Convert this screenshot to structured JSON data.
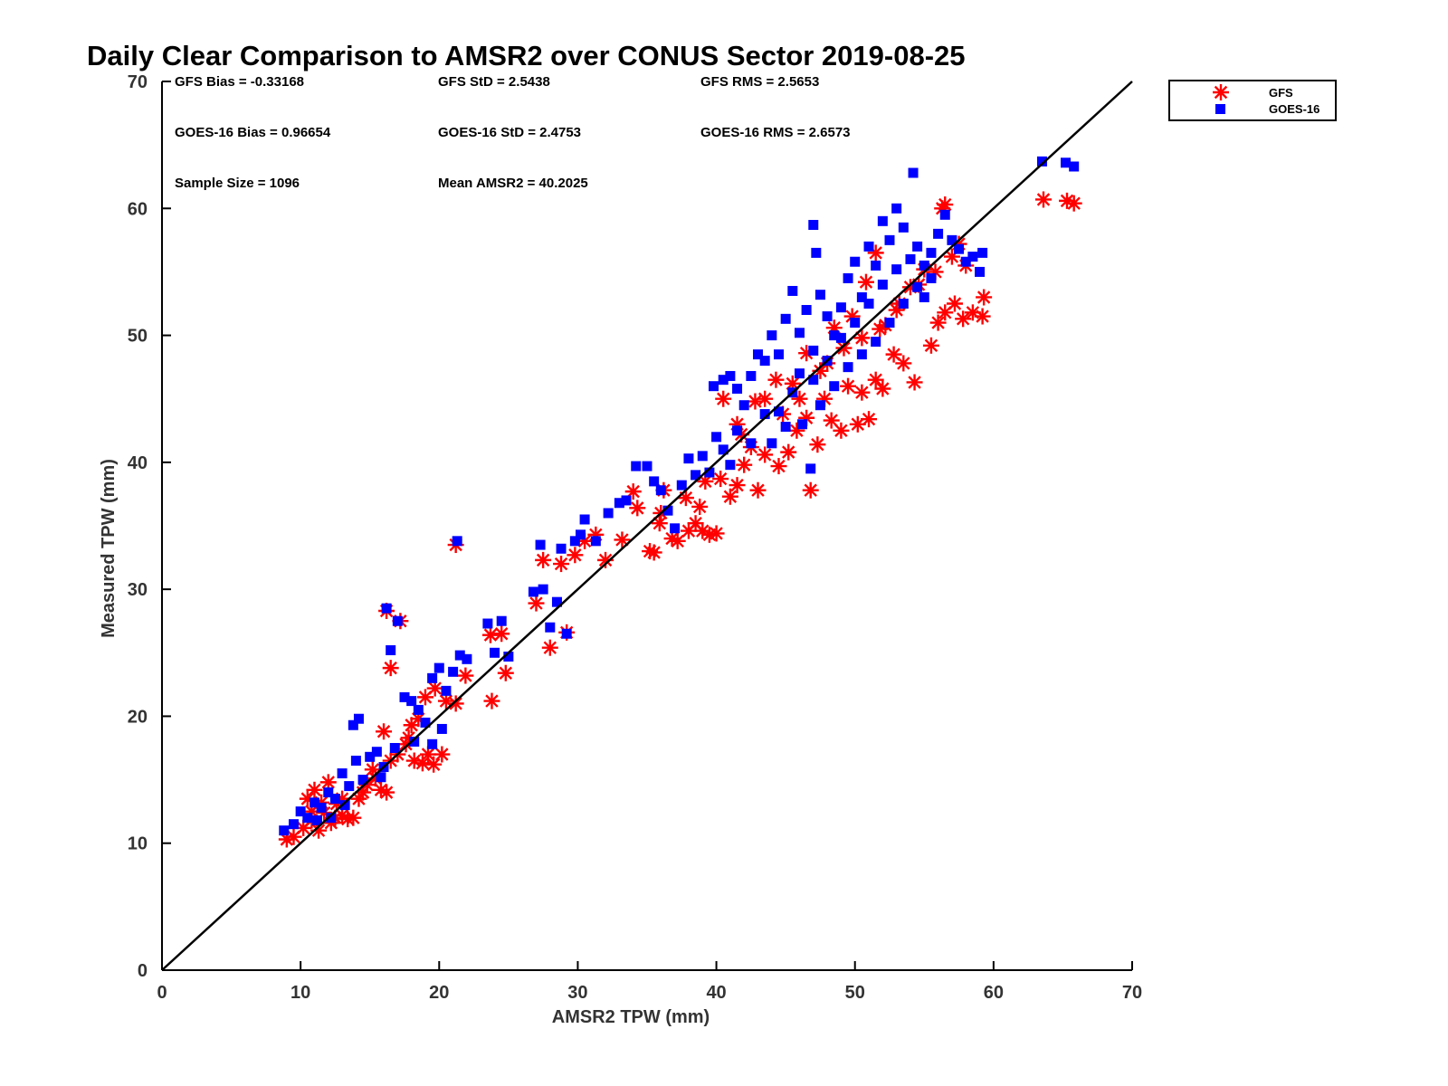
{
  "chart_data": {
    "type": "scatter",
    "title": "Daily Clear Comparison to AMSR2 over CONUS Sector 2019-08-25",
    "xlabel": "AMSR2 TPW (mm)",
    "ylabel": "Measured TPW (mm)",
    "xlim": [
      0,
      70
    ],
    "ylim": [
      0,
      70
    ],
    "xticks": [
      "0",
      "10",
      "20",
      "30",
      "40",
      "50",
      "60",
      "70"
    ],
    "yticks": [
      "0",
      "10",
      "20",
      "30",
      "40",
      "50",
      "60",
      "70"
    ],
    "grid": false,
    "legend_position": "top-right, outside plot",
    "reference_line": "y = x",
    "stats": {
      "gfs_bias": "GFS Bias = -0.33168",
      "gfs_std": "GFS StD = 2.5438",
      "gfs_rms": "GFS RMS = 2.5653",
      "goes_bias": "GOES-16 Bias = 0.96654",
      "goes_std": "GOES-16 StD = 2.4753",
      "goes_rms": "GOES-16 RMS = 2.6573",
      "sample_size": "Sample Size = 1096",
      "mean_amsr2": "Mean AMSR2 = 40.2025"
    },
    "series": [
      {
        "name": "GFS",
        "marker": "asterisk",
        "color": "#ff0000",
        "points": [
          [
            9.0,
            10.3
          ],
          [
            9.5,
            10.5
          ],
          [
            10.2,
            11.2
          ],
          [
            10.8,
            11.8
          ],
          [
            11.3,
            11.0
          ],
          [
            11.7,
            12.4
          ],
          [
            12.2,
            11.6
          ],
          [
            12.6,
            13.1
          ],
          [
            13.0,
            12.2
          ],
          [
            13.4,
            11.9
          ],
          [
            13.8,
            12.0
          ],
          [
            14.2,
            13.5
          ],
          [
            10.5,
            13.5
          ],
          [
            11.0,
            14.2
          ],
          [
            12.0,
            14.8
          ],
          [
            14.8,
            14.6
          ],
          [
            15.4,
            15.1
          ],
          [
            15.8,
            14.2
          ],
          [
            16.2,
            14.0
          ],
          [
            16.5,
            16.5
          ],
          [
            17.0,
            17.0
          ],
          [
            17.6,
            17.8
          ],
          [
            18.2,
            16.5
          ],
          [
            18.8,
            16.3
          ],
          [
            19.2,
            17.0
          ],
          [
            19.6,
            16.2
          ],
          [
            20.2,
            17.0
          ],
          [
            16.0,
            18.8
          ],
          [
            18.5,
            19.8
          ],
          [
            19.0,
            21.5
          ],
          [
            19.7,
            22.2
          ],
          [
            20.5,
            21.2
          ],
          [
            21.2,
            21.0
          ],
          [
            21.9,
            23.2
          ],
          [
            16.2,
            28.3
          ],
          [
            17.2,
            27.5
          ],
          [
            16.5,
            23.8
          ],
          [
            21.2,
            33.5
          ],
          [
            23.7,
            26.4
          ],
          [
            24.5,
            26.5
          ],
          [
            23.8,
            21.2
          ],
          [
            24.8,
            23.4
          ],
          [
            27.0,
            28.9
          ],
          [
            27.5,
            32.3
          ],
          [
            28.0,
            25.4
          ],
          [
            28.8,
            32.0
          ],
          [
            29.2,
            26.6
          ],
          [
            29.8,
            32.7
          ],
          [
            30.5,
            33.8
          ],
          [
            31.3,
            34.3
          ],
          [
            32.0,
            32.3
          ],
          [
            33.2,
            33.9
          ],
          [
            34.3,
            36.4
          ],
          [
            34.0,
            37.7
          ],
          [
            35.5,
            32.9
          ],
          [
            35.2,
            33.0
          ],
          [
            35.9,
            35.2
          ],
          [
            36.2,
            37.8
          ],
          [
            36.8,
            34.0
          ],
          [
            37.2,
            33.8
          ],
          [
            38.0,
            34.6
          ],
          [
            38.5,
            35.2
          ],
          [
            39.0,
            34.6
          ],
          [
            39.5,
            34.3
          ],
          [
            40.0,
            34.4
          ],
          [
            40.3,
            38.7
          ],
          [
            41.0,
            37.3
          ],
          [
            41.5,
            38.2
          ],
          [
            42.0,
            39.8
          ],
          [
            43.0,
            37.8
          ],
          [
            40.5,
            45.0
          ],
          [
            41.5,
            43.0
          ],
          [
            42.5,
            41.2
          ],
          [
            43.5,
            40.6
          ],
          [
            44.5,
            39.7
          ],
          [
            45.2,
            40.8
          ],
          [
            45.8,
            42.5
          ],
          [
            46.5,
            43.5
          ],
          [
            46.8,
            37.8
          ],
          [
            47.3,
            41.4
          ],
          [
            47.8,
            45.0
          ],
          [
            48.3,
            43.3
          ],
          [
            49.0,
            42.5
          ],
          [
            49.5,
            46.0
          ],
          [
            50.2,
            43.0
          ],
          [
            50.5,
            45.5
          ],
          [
            51.0,
            43.4
          ],
          [
            51.5,
            46.5
          ],
          [
            52.0,
            45.8
          ],
          [
            52.8,
            48.5
          ],
          [
            53.5,
            47.8
          ],
          [
            54.3,
            46.3
          ],
          [
            55.5,
            49.2
          ],
          [
            56.0,
            51.0
          ],
          [
            56.5,
            51.8
          ],
          [
            57.2,
            52.5
          ],
          [
            57.8,
            51.3
          ],
          [
            58.5,
            51.8
          ],
          [
            59.2,
            51.5
          ],
          [
            59.3,
            53.0
          ],
          [
            58.0,
            55.5
          ],
          [
            57.5,
            57.2
          ],
          [
            56.5,
            60.3
          ],
          [
            56.3,
            60.0
          ],
          [
            55.0,
            55.2
          ],
          [
            54.0,
            53.8
          ],
          [
            53.0,
            52.0
          ],
          [
            52.2,
            50.8
          ],
          [
            51.5,
            56.5
          ],
          [
            50.8,
            54.2
          ],
          [
            49.8,
            51.5
          ],
          [
            48.5,
            50.6
          ],
          [
            47.5,
            47.2
          ],
          [
            46.5,
            48.6
          ],
          [
            45.5,
            46.2
          ],
          [
            44.3,
            46.5
          ],
          [
            43.5,
            45.0
          ],
          [
            42.8,
            44.8
          ],
          [
            63.6,
            60.7
          ],
          [
            65.3,
            60.6
          ],
          [
            65.8,
            60.4
          ],
          [
            41.8,
            42.2
          ],
          [
            44.8,
            43.8
          ],
          [
            46.0,
            45.0
          ],
          [
            48.0,
            47.8
          ],
          [
            49.2,
            49.0
          ],
          [
            50.5,
            49.8
          ],
          [
            51.8,
            50.5
          ],
          [
            53.2,
            52.5
          ],
          [
            54.6,
            54.0
          ],
          [
            55.8,
            55.0
          ],
          [
            57.0,
            56.2
          ],
          [
            36.0,
            36.0
          ],
          [
            37.8,
            37.2
          ],
          [
            39.2,
            38.5
          ],
          [
            38.8,
            36.5
          ],
          [
            13.0,
            13.5
          ],
          [
            14.5,
            14.0
          ],
          [
            15.2,
            15.8
          ],
          [
            12.5,
            12.0
          ],
          [
            11.5,
            13.2
          ],
          [
            10.8,
            12.5
          ],
          [
            17.8,
            18.3
          ],
          [
            18.0,
            19.3
          ]
        ]
      },
      {
        "name": "GOES-16",
        "marker": "square",
        "color": "#0000ff",
        "points": [
          [
            8.8,
            11.0
          ],
          [
            9.5,
            11.5
          ],
          [
            10.0,
            12.5
          ],
          [
            10.5,
            12.0
          ],
          [
            11.0,
            13.2
          ],
          [
            11.5,
            12.8
          ],
          [
            12.0,
            14.0
          ],
          [
            12.5,
            13.5
          ],
          [
            13.0,
            15.5
          ],
          [
            13.5,
            14.5
          ],
          [
            14.0,
            16.5
          ],
          [
            14.5,
            15.0
          ],
          [
            13.8,
            19.3
          ],
          [
            14.2,
            19.8
          ],
          [
            15.0,
            16.8
          ],
          [
            15.5,
            17.2
          ],
          [
            16.0,
            16.0
          ],
          [
            16.5,
            25.2
          ],
          [
            16.2,
            28.5
          ],
          [
            17.0,
            27.5
          ],
          [
            17.5,
            21.5
          ],
          [
            18.0,
            21.2
          ],
          [
            18.5,
            20.5
          ],
          [
            19.0,
            19.5
          ],
          [
            19.5,
            23.0
          ],
          [
            20.0,
            23.8
          ],
          [
            20.5,
            22.0
          ],
          [
            21.0,
            23.5
          ],
          [
            21.5,
            24.8
          ],
          [
            22.0,
            24.5
          ],
          [
            21.3,
            33.8
          ],
          [
            23.5,
            27.3
          ],
          [
            24.0,
            25.0
          ],
          [
            24.5,
            27.5
          ],
          [
            25.0,
            24.7
          ],
          [
            26.8,
            29.8
          ],
          [
            27.5,
            30.0
          ],
          [
            27.3,
            33.5
          ],
          [
            28.0,
            27.0
          ],
          [
            28.5,
            29.0
          ],
          [
            28.8,
            33.2
          ],
          [
            29.2,
            26.5
          ],
          [
            29.8,
            33.8
          ],
          [
            30.2,
            34.3
          ],
          [
            30.5,
            35.5
          ],
          [
            31.3,
            33.8
          ],
          [
            32.2,
            36.0
          ],
          [
            33.0,
            36.8
          ],
          [
            33.5,
            37.0
          ],
          [
            34.2,
            39.7
          ],
          [
            35.0,
            39.7
          ],
          [
            35.5,
            38.5
          ],
          [
            36.0,
            37.8
          ],
          [
            36.5,
            36.2
          ],
          [
            37.0,
            34.8
          ],
          [
            37.5,
            38.2
          ],
          [
            38.0,
            40.3
          ],
          [
            38.5,
            39.0
          ],
          [
            39.0,
            40.5
          ],
          [
            39.5,
            39.2
          ],
          [
            40.0,
            42.0
          ],
          [
            40.5,
            41.0
          ],
          [
            41.0,
            39.8
          ],
          [
            41.5,
            42.5
          ],
          [
            39.8,
            46.0
          ],
          [
            40.5,
            46.5
          ],
          [
            41.0,
            46.8
          ],
          [
            41.5,
            45.8
          ],
          [
            42.0,
            44.5
          ],
          [
            42.5,
            46.8
          ],
          [
            43.0,
            48.5
          ],
          [
            43.5,
            48.0
          ],
          [
            44.0,
            50.0
          ],
          [
            44.5,
            48.5
          ],
          [
            45.0,
            51.3
          ],
          [
            45.5,
            53.5
          ],
          [
            46.0,
            50.2
          ],
          [
            46.5,
            52.0
          ],
          [
            47.0,
            48.8
          ],
          [
            47.5,
            53.2
          ],
          [
            47.2,
            56.5
          ],
          [
            47.0,
            58.7
          ],
          [
            48.0,
            51.5
          ],
          [
            48.5,
            50.0
          ],
          [
            49.0,
            52.2
          ],
          [
            49.5,
            54.5
          ],
          [
            50.0,
            55.8
          ],
          [
            50.5,
            53.0
          ],
          [
            51.0,
            57.0
          ],
          [
            51.5,
            55.5
          ],
          [
            52.0,
            59.0
          ],
          [
            52.5,
            57.5
          ],
          [
            53.0,
            60.0
          ],
          [
            53.5,
            58.5
          ],
          [
            54.0,
            56.0
          ],
          [
            54.5,
            57.0
          ],
          [
            54.2,
            62.8
          ],
          [
            55.0,
            55.5
          ],
          [
            55.5,
            56.5
          ],
          [
            56.0,
            58.0
          ],
          [
            56.5,
            59.5
          ],
          [
            57.0,
            57.5
          ],
          [
            57.5,
            56.8
          ],
          [
            58.0,
            55.8
          ],
          [
            58.5,
            56.2
          ],
          [
            59.0,
            55.0
          ],
          [
            59.2,
            56.5
          ],
          [
            63.5,
            63.7
          ],
          [
            65.2,
            63.6
          ],
          [
            65.8,
            63.3
          ],
          [
            46.2,
            43.0
          ],
          [
            47.5,
            44.5
          ],
          [
            48.5,
            46.0
          ],
          [
            49.5,
            47.5
          ],
          [
            50.5,
            48.5
          ],
          [
            51.5,
            49.5
          ],
          [
            52.5,
            51.0
          ],
          [
            53.5,
            52.5
          ],
          [
            54.5,
            53.8
          ],
          [
            55.5,
            54.5
          ],
          [
            44.5,
            44.0
          ],
          [
            45.5,
            45.5
          ],
          [
            46.0,
            47.0
          ],
          [
            43.5,
            43.8
          ],
          [
            42.5,
            41.5
          ],
          [
            46.8,
            39.5
          ],
          [
            44.0,
            41.5
          ],
          [
            45.0,
            42.8
          ],
          [
            12.2,
            12.0
          ],
          [
            13.2,
            13.0
          ],
          [
            15.8,
            15.2
          ],
          [
            16.8,
            17.5
          ],
          [
            18.2,
            18.0
          ],
          [
            19.5,
            17.8
          ],
          [
            20.2,
            19.0
          ],
          [
            11.2,
            11.8
          ],
          [
            50.0,
            51.0
          ],
          [
            51.0,
            52.5
          ],
          [
            52.0,
            54.0
          ],
          [
            53.0,
            55.2
          ],
          [
            49.0,
            49.8
          ],
          [
            48.0,
            48.0
          ],
          [
            47.0,
            46.5
          ],
          [
            55.0,
            53.0
          ]
        ]
      }
    ]
  }
}
